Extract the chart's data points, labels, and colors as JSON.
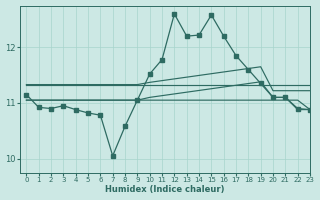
{
  "background_color": "#cce8e4",
  "line_color": "#2e6b62",
  "grid_color": "#a8d4cc",
  "xlabel": "Humidex (Indice chaleur)",
  "xlim": [
    -0.5,
    23
  ],
  "ylim": [
    9.75,
    12.75
  ],
  "yticks": [
    10,
    11,
    12
  ],
  "xticks": [
    0,
    1,
    2,
    3,
    4,
    5,
    6,
    7,
    8,
    9,
    10,
    11,
    12,
    13,
    14,
    15,
    16,
    17,
    18,
    19,
    20,
    21,
    22,
    23
  ],
  "curve_x": [
    0,
    1,
    2,
    3,
    4,
    5,
    6,
    7,
    8,
    9,
    10,
    11,
    12,
    13,
    14,
    15,
    16,
    17,
    18,
    19,
    20,
    21,
    22,
    23
  ],
  "curve_y": [
    11.15,
    10.92,
    10.9,
    10.95,
    10.88,
    10.82,
    10.78,
    10.05,
    10.58,
    11.05,
    11.52,
    11.78,
    12.6,
    12.2,
    12.22,
    12.58,
    12.2,
    11.85,
    11.6,
    11.35,
    11.1,
    11.1,
    10.9,
    10.88
  ],
  "line1_x": [
    0,
    23
  ],
  "line1_y": [
    11.33,
    11.33
  ],
  "line2_x": [
    0,
    9,
    10,
    19,
    20,
    23
  ],
  "line2_y": [
    11.33,
    11.33,
    11.37,
    11.65,
    11.22,
    11.22
  ],
  "line3_x": [
    0,
    9,
    10,
    19,
    20,
    21,
    22,
    23
  ],
  "line3_y": [
    11.05,
    11.05,
    11.1,
    11.38,
    11.1,
    11.1,
    10.88,
    10.88
  ],
  "line4_x": [
    0,
    9,
    10,
    22,
    23
  ],
  "line4_y": [
    11.05,
    11.05,
    11.05,
    11.05,
    10.88
  ]
}
